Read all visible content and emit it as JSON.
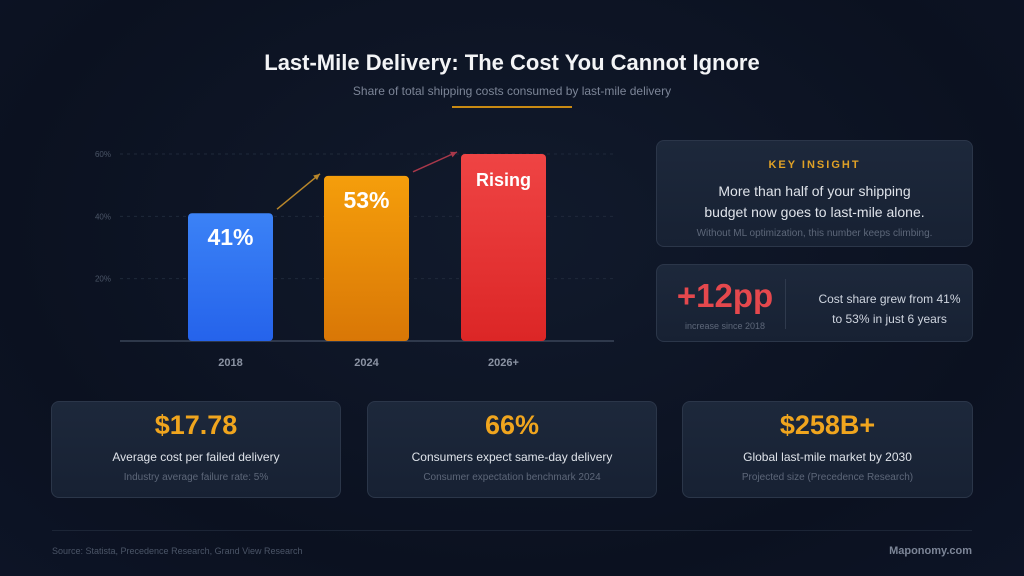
{
  "header": {
    "title": "Last-Mile Delivery: The Cost You Cannot Ignore",
    "subtitle": "Share of total shipping costs consumed by last-mile delivery"
  },
  "chart_data": {
    "type": "bar",
    "title": "Share of total shipping costs consumed by last-mile delivery",
    "categories": [
      "2018",
      "2024",
      "2026+"
    ],
    "values": [
      41,
      53,
      60
    ],
    "data_labels": [
      "41%",
      "53%",
      "Rising"
    ],
    "colors": [
      [
        "#3b82f6",
        "#2563eb"
      ],
      [
        "#f59e0b",
        "#d97706"
      ],
      [
        "#ef4444",
        "#dc2626"
      ]
    ],
    "arrow_colors": [
      "#b8862a",
      "#a8384a"
    ],
    "yticks": [
      {
        "value": 20,
        "label": "20%"
      },
      {
        "value": 40,
        "label": "40%"
      },
      {
        "value": 60,
        "label": "60%"
      }
    ],
    "ylim": [
      0,
      60
    ],
    "xlabel": "",
    "ylabel": "",
    "grid": true,
    "legend": "none"
  },
  "insight": {
    "label": "KEY INSIGHT",
    "line1": "More than half of your shipping",
    "line2": "budget now goes to last-mile alone.",
    "note": "Without ML optimization, this number keeps climbing."
  },
  "growth": {
    "value": "+12pp",
    "sub": "increase since 2018",
    "line1": "Cost share grew from 41%",
    "line2": "to 53% in just 6 years"
  },
  "stats": [
    {
      "value": "$17.78",
      "label": "Average cost per failed delivery",
      "note": "Industry average failure rate: 5%"
    },
    {
      "value": "66%",
      "label": "Consumers expect same-day delivery",
      "note": "Consumer expectation benchmark 2024"
    },
    {
      "value": "$258B+",
      "label": "Global last-mile market by 2030",
      "note": "Projected size (Precedence Research)"
    }
  ],
  "footer": {
    "source": "Source: Statista, Precedence Research, Grand View Research",
    "brand": "Maponomy.com"
  }
}
